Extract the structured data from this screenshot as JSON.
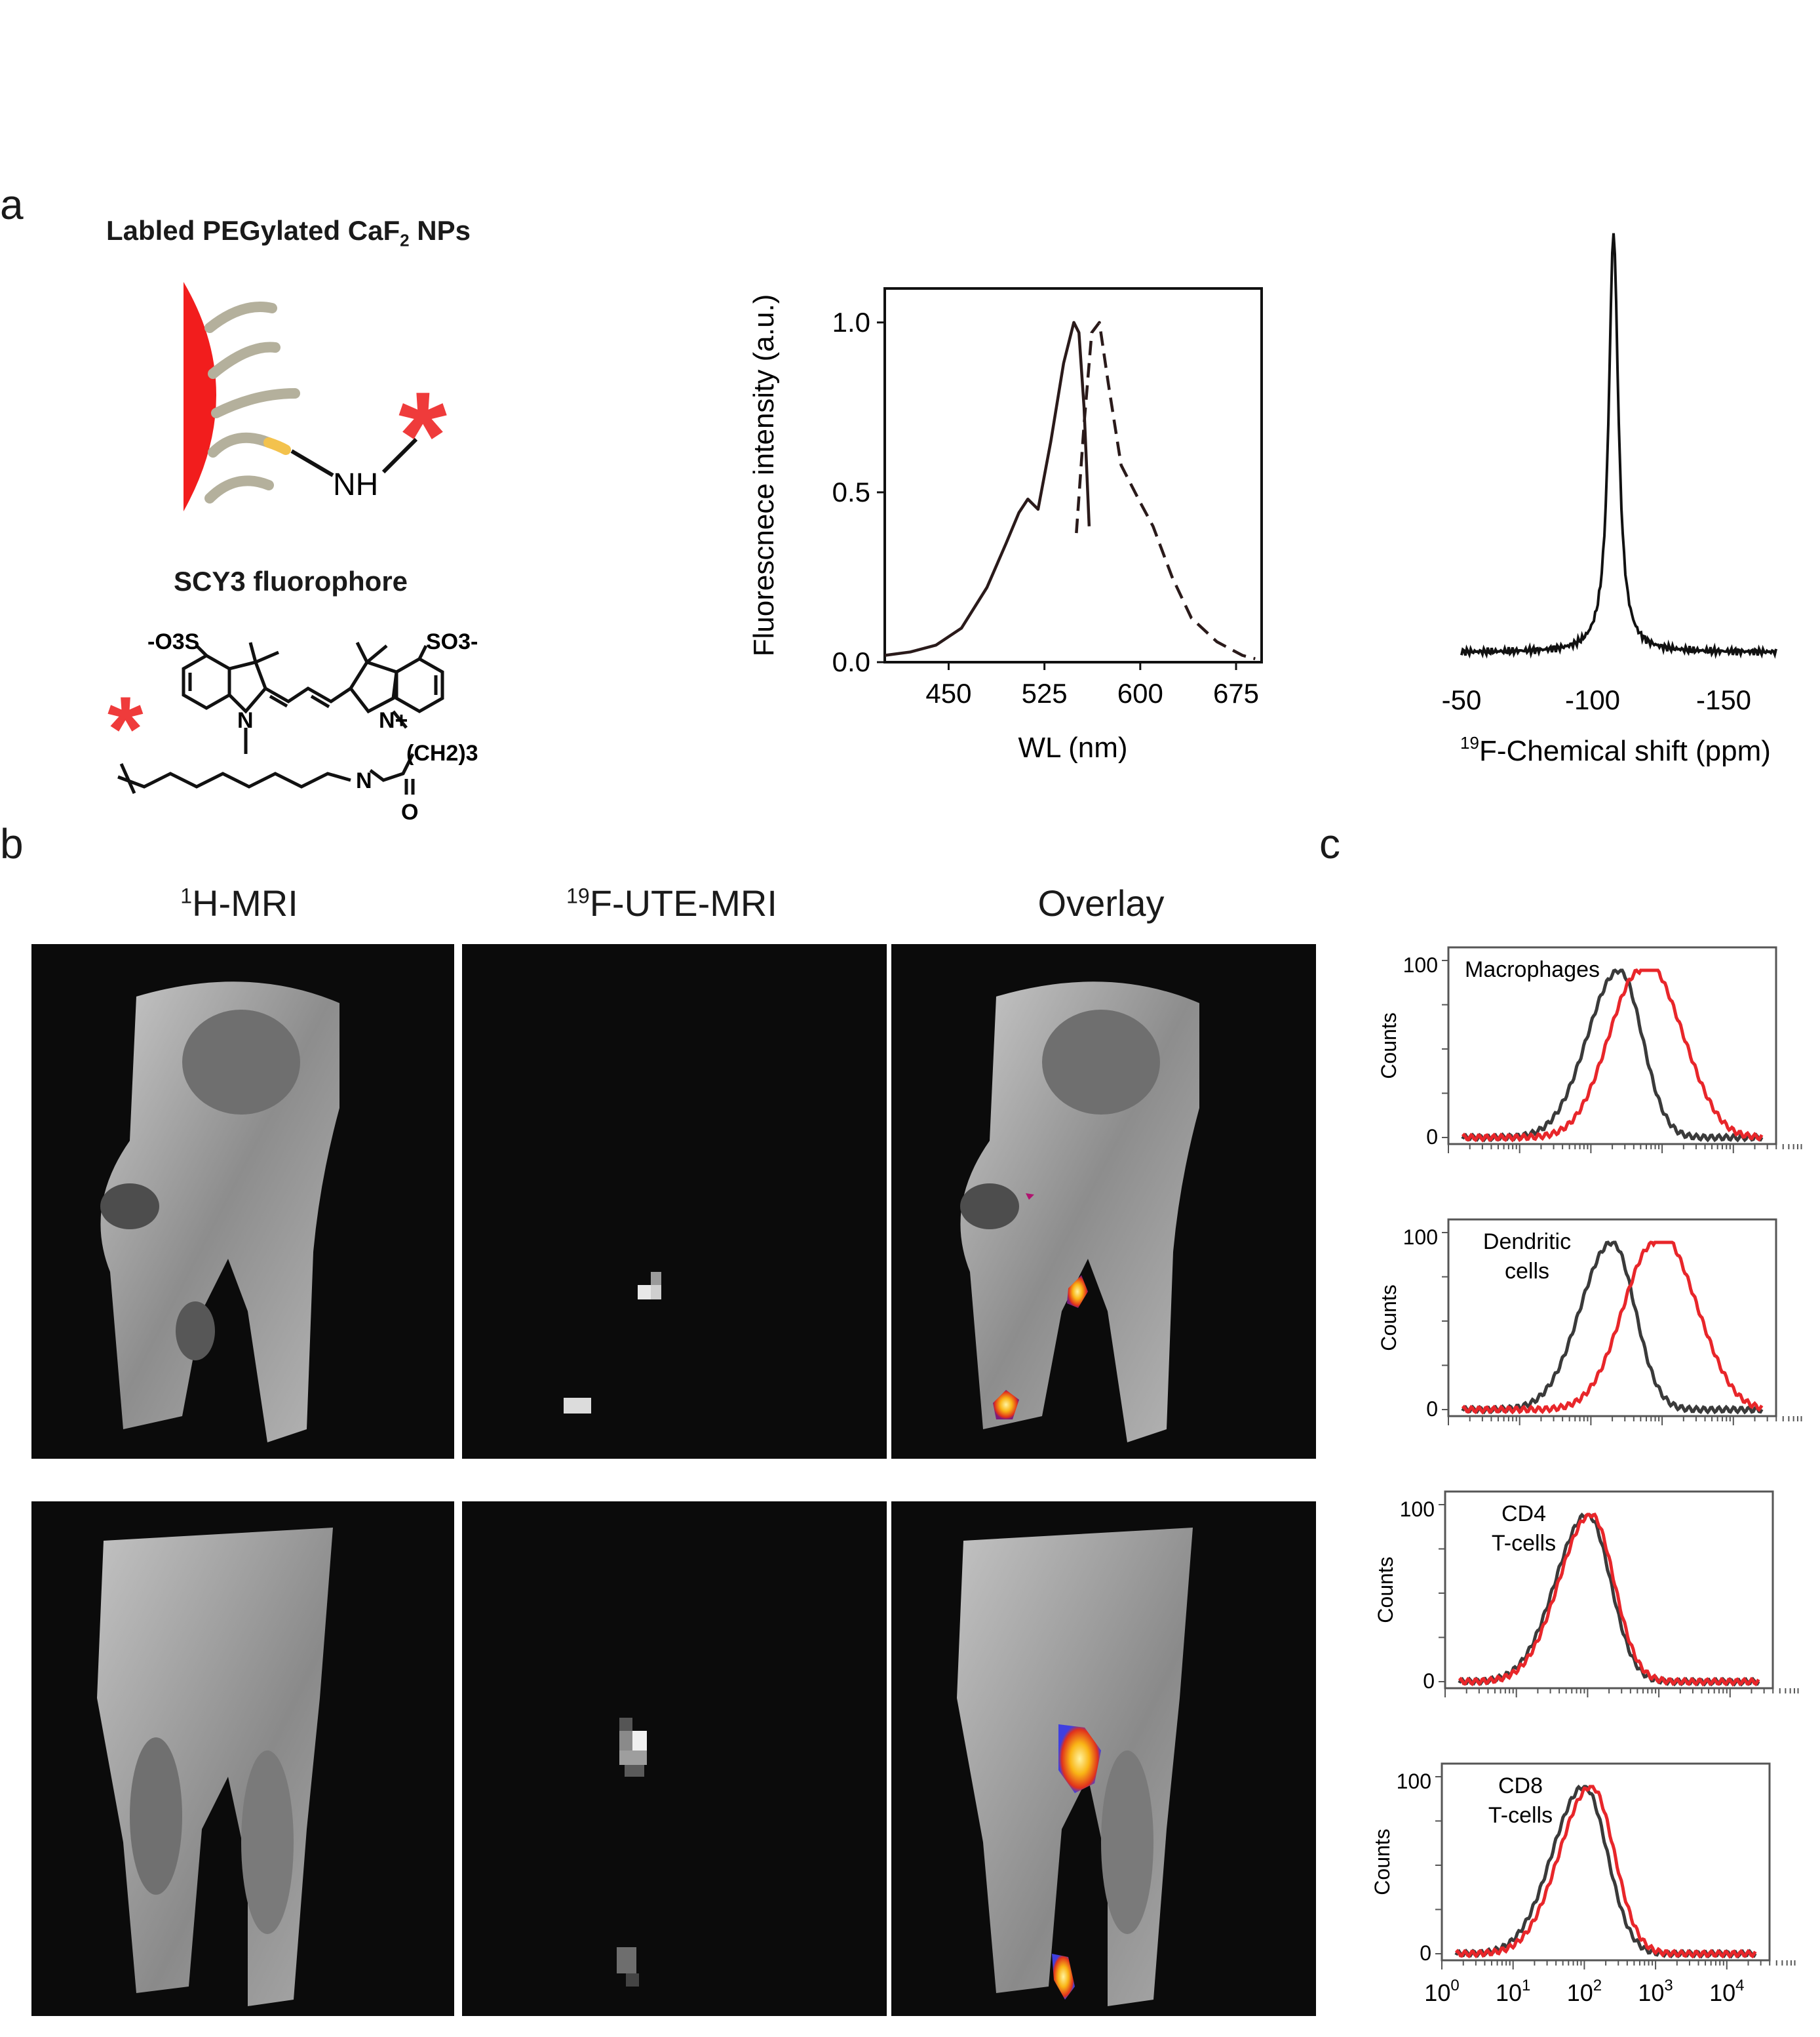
{
  "panel_a": {
    "letter": "a",
    "np_title": "Labled PEGylated CaF",
    "np_title_sub": "2",
    "np_title_end": " NPs",
    "nh_label": "NH",
    "asterisk": "*",
    "fluor_title": "SCY3 fluorophore",
    "structure_labels": {
      "left_sulfonate": "-O3S",
      "right_sulfonate": "SO3-",
      "n_left": "N",
      "n_right": "N+",
      "ch2": "(CH2)3",
      "n_amide": "N",
      "o": "O"
    },
    "colors": {
      "nanoparticle": "#f21d1d",
      "peg": "#b4b09c",
      "linker_tip": "#f3c24d",
      "asterisk": "#ef3b3b"
    }
  },
  "chart_data": [
    {
      "type": "line",
      "ylabel": "Fluorescnece intensity (a.u.)",
      "xlabel": "WL (nm)",
      "xlim": [
        400,
        695
      ],
      "ylim": [
        0,
        1.1
      ],
      "xticks": [
        "450",
        "525",
        "600",
        "675"
      ],
      "yticks": [
        "0.0",
        "0.5",
        "1.0"
      ],
      "series": [
        {
          "style": "solid",
          "x": [
            400,
            420,
            440,
            460,
            480,
            495,
            505,
            512,
            520,
            530,
            540,
            548,
            552,
            556,
            560
          ],
          "y": [
            0.02,
            0.03,
            0.05,
            0.1,
            0.22,
            0.35,
            0.44,
            0.48,
            0.45,
            0.65,
            0.88,
            1.0,
            0.97,
            0.75,
            0.4
          ]
        },
        {
          "style": "dashed",
          "x": [
            550,
            556,
            562,
            568,
            575,
            585,
            600,
            610,
            625,
            640,
            660,
            680,
            690
          ],
          "y": [
            0.38,
            0.7,
            0.97,
            1.0,
            0.82,
            0.58,
            0.47,
            0.4,
            0.25,
            0.13,
            0.06,
            0.02,
            0.01
          ]
        }
      ]
    },
    {
      "type": "line",
      "xlabel": "19F-Chemical shift (ppm)",
      "xlabel_sup": "19",
      "xlabel_text": "F-Chemical shift (ppm)",
      "xlim": [
        -50,
        -170
      ],
      "xticks": [
        "-50",
        "-100",
        "-150"
      ],
      "peak_center": -108,
      "series": [
        {
          "style": "solid",
          "shape": "single sharp peak"
        }
      ]
    },
    {
      "type": "line",
      "title": "Macrophages",
      "ylabel": "Counts",
      "yticks": [
        "0",
        "100"
      ],
      "series": [
        {
          "color": "#3a3a3a",
          "peak_log10": 2.4
        },
        {
          "color": "#e8262a",
          "peak_log10": 2.7
        }
      ]
    },
    {
      "type": "line",
      "title": "Dendritic cells",
      "ylabel": "Counts",
      "yticks": [
        "0",
        "100"
      ],
      "series": [
        {
          "color": "#3a3a3a",
          "peak_log10": 2.3
        },
        {
          "color": "#e8262a",
          "peak_log10": 2.9
        }
      ]
    },
    {
      "type": "line",
      "title": "CD4 T-cells",
      "ylabel": "Counts",
      "yticks": [
        "0",
        "100"
      ],
      "series": [
        {
          "color": "#3a3a3a",
          "peak_log10": 2.0
        },
        {
          "color": "#e8262a",
          "peak_log10": 2.05
        }
      ]
    },
    {
      "type": "line",
      "title": "CD8 T-cells",
      "ylabel": "Counts",
      "yticks": [
        "0",
        "100"
      ],
      "xtick_exponents": [
        "0",
        "1",
        "2",
        "3",
        "4"
      ],
      "series": [
        {
          "color": "#3a3a3a",
          "peak_log10": 2.0
        },
        {
          "color": "#e8262a",
          "peak_log10": 2.1
        }
      ]
    }
  ],
  "panel_b": {
    "letter": "b",
    "col_titles": [
      {
        "sup": "1",
        "text": "H-MRI"
      },
      {
        "sup": "19",
        "text": "F-UTE-MRI"
      },
      {
        "sup": "",
        "text": "Overlay"
      }
    ]
  },
  "panel_c": {
    "letter": "c",
    "hist_labels": [
      [
        "Macrophages"
      ],
      [
        "Dendritic",
        "cells"
      ],
      [
        "CD4",
        "T-cells"
      ],
      [
        "CD8",
        "T-cells"
      ]
    ],
    "ylabel": "Counts",
    "y_top": "100",
    "y_zero": "0",
    "x_base": "10",
    "x_exponents": [
      "0",
      "1",
      "2",
      "3",
      "4"
    ]
  }
}
